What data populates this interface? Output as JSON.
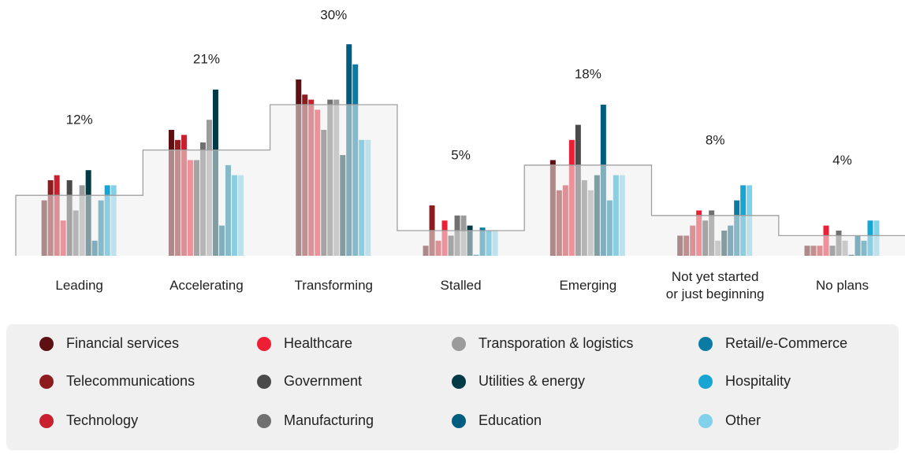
{
  "chart_data": {
    "type": "bar",
    "categories": [
      "Leading",
      "Accelerating",
      "Transforming",
      "Stalled",
      "Emerging",
      "Not yet started\nor just beginning",
      "No plans"
    ],
    "overall": {
      "values": [
        12,
        21,
        30,
        5,
        18,
        8,
        4
      ],
      "value_labels": [
        "12%",
        "21%",
        "30%",
        "5%",
        "18%",
        "8%",
        "4%"
      ]
    },
    "series": [
      {
        "name": "Financial services",
        "color": "#5e0f12",
        "values": [
          11,
          25,
          35,
          2,
          19,
          4,
          2
        ]
      },
      {
        "name": "Telecommunications",
        "color": "#8e1c1f",
        "values": [
          15,
          23,
          32,
          10,
          13,
          4,
          2
        ]
      },
      {
        "name": "Technology",
        "color": "#c8202f",
        "values": [
          16,
          24,
          31,
          3,
          14,
          6,
          2
        ]
      },
      {
        "name": "Healthcare",
        "color": "#ee1f35",
        "values": [
          7,
          19,
          29,
          7,
          23,
          9,
          6
        ]
      },
      {
        "name": "Government",
        "color": "#4a4a4a",
        "values": [
          15,
          19,
          25,
          4,
          26,
          7,
          2
        ]
      },
      {
        "name": "Manufacturing",
        "color": "#707070",
        "values": [
          9,
          22.5,
          31,
          8,
          15,
          9,
          5
        ]
      },
      {
        "name": "Transporation & logistics",
        "color": "#9b9b9b",
        "values": [
          14,
          27,
          31,
          8,
          13,
          3,
          3
        ]
      },
      {
        "name": "Utilities & energy",
        "color": "#003a47",
        "values": [
          17,
          33,
          20,
          6,
          16,
          5,
          0.2
        ]
      },
      {
        "name": "Education",
        "color": "#005d80",
        "values": [
          3,
          6,
          42,
          0.2,
          30,
          6,
          4
        ]
      },
      {
        "name": "Retail/e-Commerce",
        "color": "#0b7ba3",
        "values": [
          11,
          18,
          38,
          5.6,
          11,
          11,
          3
        ]
      },
      {
        "name": "Hospitality",
        "color": "#17a5d3",
        "values": [
          14,
          16,
          23,
          5,
          16,
          14,
          7
        ]
      },
      {
        "name": "Other",
        "color": "#82d1ea",
        "values": [
          14,
          16,
          23,
          5,
          16,
          14,
          7
        ]
      }
    ]
  }
}
